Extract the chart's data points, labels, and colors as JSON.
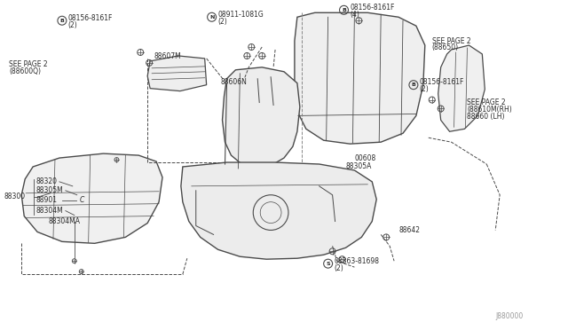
{
  "background_color": "#ffffff",
  "line_color": "#4a4a4a",
  "text_color": "#2a2a2a",
  "fig_width": 6.4,
  "fig_height": 3.72,
  "dpi": 100,
  "watermark": "J880000",
  "label_B1": "B",
  "label_08156_1": "08156-8161F",
  "label_2a": "(2)",
  "label_N": "N",
  "label_08911": "08911-1081G",
  "label_2b": "(2)",
  "label_B2": "B",
  "label_08156_2": "08156-8161F",
  "label_4": "(4)",
  "label_seep2_88600": "SEE PAGE 2\n(88600Q)",
  "label_88607M": "88607M",
  "label_88606N": "88606N",
  "label_seep2_88650": "SEE PAGE 2\n(88650)",
  "label_B3": "B",
  "label_08156_3": "08156-8161F",
  "label_2c": "(2)",
  "label_seep2_88610": "SEE PAGE 2\n(88610M(RH)\n88660 (LH)",
  "label_00608": "00608",
  "label_88305A": "88305A",
  "label_88642": "88642",
  "label_S": "S",
  "label_08363": "08363-81698",
  "label_2d": "(2)",
  "label_88320": "88320",
  "label_88305M": "88305M",
  "label_88300": "88300",
  "label_88901": "88901",
  "label_C": "C",
  "label_88304M": "88304M",
  "label_88304MA": "88304MA"
}
